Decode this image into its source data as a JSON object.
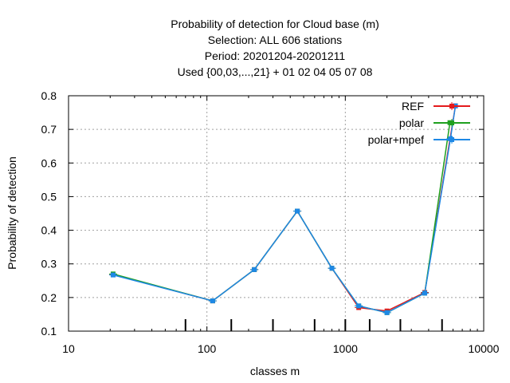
{
  "chart_data": {
    "type": "line",
    "title_lines": [
      "Probability of detection  for Cloud base (m)",
      "Selection: ALL    606 stations",
      "Period: 20201204-20201211",
      "Used {00,03,...,21} + 01 02 04 05 07 08"
    ],
    "xlabel": "classes m",
    "ylabel": "Probability of detection",
    "x_scale": "log",
    "xlim": [
      10,
      10000
    ],
    "ylim": [
      0.1,
      0.8
    ],
    "x_tick_labels": [
      "10",
      "100",
      "1000",
      "10000"
    ],
    "y_tick_labels": [
      "0.1",
      "0.2",
      "0.3",
      "0.4",
      "0.5",
      "0.6",
      "0.7",
      "0.8"
    ],
    "grid": true,
    "legend_position": "top-right",
    "class_boundaries": [
      70,
      150,
      300,
      600,
      1000,
      1500,
      2500,
      5000
    ],
    "series": [
      {
        "name": "REF",
        "color": "#e41a1c",
        "x": [
          21,
          110,
          220,
          450,
          800,
          1250,
          2000,
          3750,
          6250
        ],
        "y": [
          0.268,
          0.19,
          0.283,
          0.457,
          0.287,
          0.17,
          0.16,
          0.215,
          0.77
        ]
      },
      {
        "name": "polar",
        "color": "#1fa01f",
        "x": [
          21,
          110,
          220,
          450,
          800,
          1250,
          2000,
          3750,
          5700
        ],
        "y": [
          0.27,
          0.19,
          0.283,
          0.457,
          0.287,
          0.175,
          0.155,
          0.213,
          0.72
        ]
      },
      {
        "name": "polar+mpef",
        "color": "#1e88e5",
        "x": [
          21,
          110,
          220,
          450,
          800,
          1250,
          2000,
          3750,
          5750,
          6250
        ],
        "y": [
          0.267,
          0.19,
          0.283,
          0.457,
          0.287,
          0.175,
          0.155,
          0.213,
          0.672,
          0.77
        ]
      }
    ]
  }
}
